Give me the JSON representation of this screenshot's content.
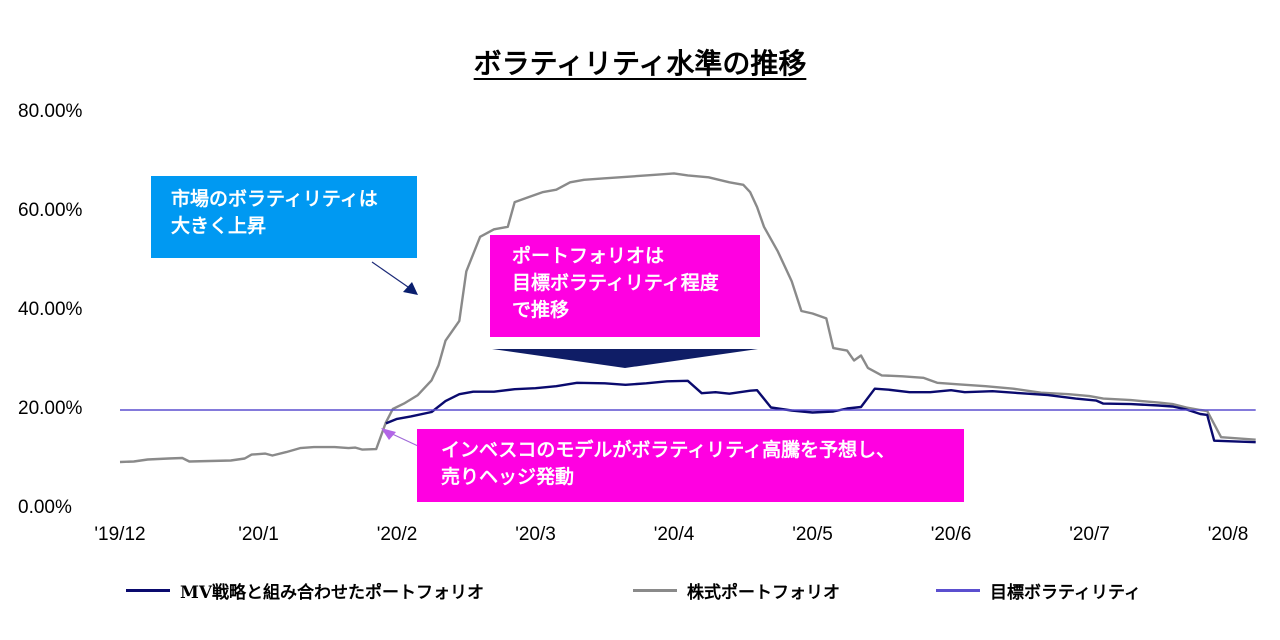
{
  "chart_data": {
    "type": "line",
    "title": "ボラティリティ水準の推移",
    "xlabel": "",
    "ylabel": "",
    "x_tick_labels": [
      "'19/12",
      "'20/1",
      "'20/2",
      "'20/3",
      "'20/4",
      "'20/5",
      "'20/6",
      "'20/7",
      "'20/8"
    ],
    "y_tick_labels": [
      "0.00%",
      "20.00%",
      "40.00%",
      "60.00%",
      "80.00%"
    ],
    "ylim": [
      0,
      80
    ],
    "grid": false,
    "legend_position": "bottom",
    "series": [
      {
        "name": "MV戦略と組み合わせたポートフォリオ",
        "color": "#0a0a6e",
        "values": [
          [
            1.92,
            17.3
          ],
          [
            2.0,
            18.2
          ],
          [
            2.1,
            18.7
          ],
          [
            2.25,
            19.6
          ],
          [
            2.35,
            21.8
          ],
          [
            2.45,
            23.2
          ],
          [
            2.55,
            23.7
          ],
          [
            2.7,
            23.7
          ],
          [
            2.85,
            24.2
          ],
          [
            3.0,
            24.4
          ],
          [
            3.15,
            24.8
          ],
          [
            3.3,
            25.5
          ],
          [
            3.5,
            25.4
          ],
          [
            3.65,
            25.1
          ],
          [
            3.8,
            25.4
          ],
          [
            3.95,
            25.8
          ],
          [
            4.1,
            25.9
          ],
          [
            4.2,
            23.4
          ],
          [
            4.3,
            23.6
          ],
          [
            4.4,
            23.3
          ],
          [
            4.55,
            23.9
          ],
          [
            4.6,
            24.0
          ],
          [
            4.7,
            20.5
          ],
          [
            4.85,
            19.9
          ],
          [
            5.0,
            19.5
          ],
          [
            5.15,
            19.7
          ],
          [
            5.25,
            20.3
          ],
          [
            5.35,
            20.6
          ],
          [
            5.45,
            24.3
          ],
          [
            5.55,
            24.1
          ],
          [
            5.7,
            23.6
          ],
          [
            5.85,
            23.6
          ],
          [
            6.0,
            24.0
          ],
          [
            6.1,
            23.6
          ],
          [
            6.3,
            23.8
          ],
          [
            6.5,
            23.4
          ],
          [
            6.7,
            23.0
          ],
          [
            6.9,
            22.3
          ],
          [
            7.05,
            21.9
          ],
          [
            7.1,
            21.3
          ],
          [
            7.3,
            21.2
          ],
          [
            7.5,
            20.9
          ],
          [
            7.6,
            20.7
          ],
          [
            7.7,
            20.1
          ],
          [
            7.8,
            19.2
          ],
          [
            7.85,
            19.0
          ],
          [
            7.9,
            13.8
          ],
          [
            8.0,
            13.7
          ],
          [
            8.2,
            13.5
          ]
        ]
      },
      {
        "name": "株式ポートフォリオ",
        "color": "#8a8a8a",
        "values": [
          [
            0.0,
            9.5
          ],
          [
            0.1,
            9.6
          ],
          [
            0.2,
            10.0
          ],
          [
            0.35,
            10.2
          ],
          [
            0.45,
            10.3
          ],
          [
            0.5,
            9.6
          ],
          [
            0.65,
            9.7
          ],
          [
            0.8,
            9.8
          ],
          [
            0.9,
            10.2
          ],
          [
            0.95,
            11.0
          ],
          [
            1.05,
            11.2
          ],
          [
            1.1,
            10.8
          ],
          [
            1.2,
            11.5
          ],
          [
            1.3,
            12.3
          ],
          [
            1.4,
            12.5
          ],
          [
            1.55,
            12.5
          ],
          [
            1.65,
            12.3
          ],
          [
            1.7,
            12.4
          ],
          [
            1.75,
            12.0
          ],
          [
            1.85,
            12.1
          ],
          [
            1.92,
            17.5
          ],
          [
            1.97,
            20.2
          ],
          [
            2.05,
            21.3
          ],
          [
            2.15,
            23.0
          ],
          [
            2.25,
            26.0
          ],
          [
            2.3,
            29.0
          ],
          [
            2.35,
            34.0
          ],
          [
            2.45,
            38.0
          ],
          [
            2.5,
            48.0
          ],
          [
            2.6,
            55.0
          ],
          [
            2.7,
            56.5
          ],
          [
            2.8,
            57.0
          ],
          [
            2.85,
            62.0
          ],
          [
            2.95,
            63.0
          ],
          [
            3.05,
            64.0
          ],
          [
            3.15,
            64.5
          ],
          [
            3.25,
            66.0
          ],
          [
            3.35,
            66.5
          ],
          [
            3.5,
            66.8
          ],
          [
            3.7,
            67.2
          ],
          [
            3.85,
            67.5
          ],
          [
            4.0,
            67.8
          ],
          [
            4.1,
            67.4
          ],
          [
            4.25,
            67.0
          ],
          [
            4.4,
            66.0
          ],
          [
            4.5,
            65.5
          ],
          [
            4.55,
            64.0
          ],
          [
            4.6,
            61.0
          ],
          [
            4.65,
            57.0
          ],
          [
            4.75,
            52.0
          ],
          [
            4.85,
            46.0
          ],
          [
            4.92,
            40.0
          ],
          [
            5.0,
            39.5
          ],
          [
            5.1,
            38.5
          ],
          [
            5.15,
            32.5
          ],
          [
            5.25,
            32.0
          ],
          [
            5.3,
            30.0
          ],
          [
            5.35,
            31.0
          ],
          [
            5.4,
            28.5
          ],
          [
            5.5,
            27.0
          ],
          [
            5.65,
            26.8
          ],
          [
            5.8,
            26.5
          ],
          [
            5.9,
            25.5
          ],
          [
            6.05,
            25.2
          ],
          [
            6.25,
            24.8
          ],
          [
            6.45,
            24.3
          ],
          [
            6.65,
            23.5
          ],
          [
            6.85,
            23.2
          ],
          [
            7.0,
            22.8
          ],
          [
            7.1,
            22.3
          ],
          [
            7.3,
            22.0
          ],
          [
            7.5,
            21.5
          ],
          [
            7.6,
            21.2
          ],
          [
            7.7,
            20.5
          ],
          [
            7.8,
            20.0
          ],
          [
            7.85,
            19.8
          ],
          [
            7.95,
            14.5
          ],
          [
            8.1,
            14.2
          ],
          [
            8.2,
            14.0
          ]
        ]
      },
      {
        "name": "目標ボラティリティ",
        "color": "#5b4fcf",
        "values": [
          [
            0.0,
            20.0
          ],
          [
            8.2,
            20.0
          ]
        ]
      }
    ],
    "annotations": [
      {
        "lines": [
          "市場のボラティリティは",
          "大きく上昇"
        ],
        "color": "#0099f2"
      },
      {
        "lines": [
          "ポートフォリオは",
          "目標ボラティリティ程度",
          "で推移"
        ],
        "color": "#ff00e1"
      },
      {
        "lines": [
          "インベスコのモデルがボラティリティ高騰を予想し、",
          "売りヘッジ発動"
        ],
        "color": "#ff00e1"
      }
    ]
  }
}
